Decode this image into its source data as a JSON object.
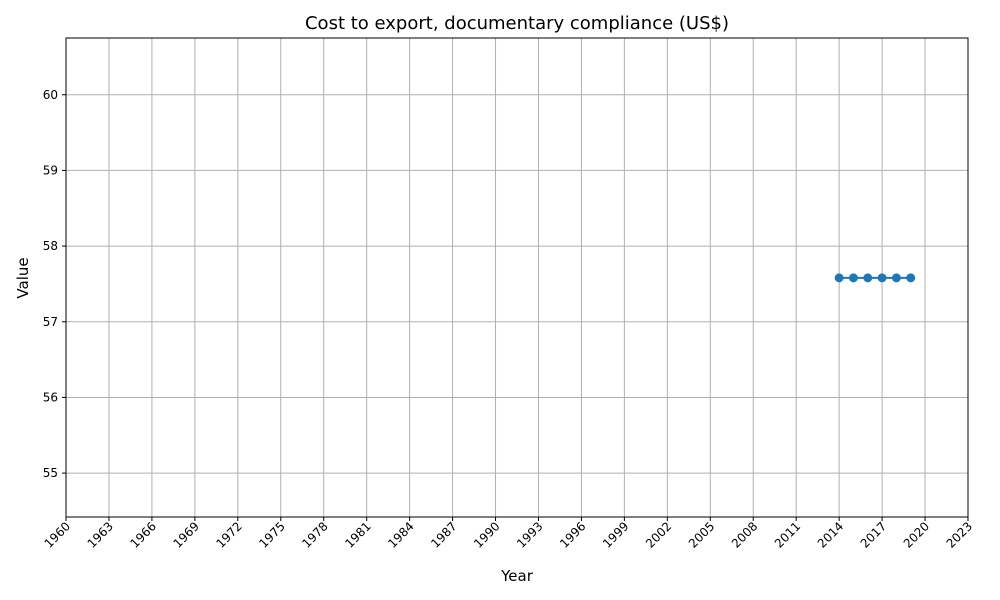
{
  "chart_data": {
    "type": "line",
    "title": "Cost to export, documentary compliance (US$)",
    "xlabel": "Year",
    "ylabel": "Value",
    "xlim": [
      1960,
      2023
    ],
    "ylim": [
      54.42,
      60.75
    ],
    "x_ticks": [
      "1960",
      "1963",
      "1966",
      "1969",
      "1972",
      "1975",
      "1978",
      "1981",
      "1984",
      "1987",
      "1990",
      "1993",
      "1996",
      "1999",
      "2002",
      "2005",
      "2008",
      "2011",
      "2014",
      "2017",
      "2020",
      "2023"
    ],
    "y_ticks": [
      "55",
      "56",
      "57",
      "58",
      "59",
      "60"
    ],
    "grid": true,
    "series": [
      {
        "color": "#1f77b4",
        "x": [
          2014,
          2015,
          2016,
          2017,
          2018,
          2019
        ],
        "y": [
          57.58,
          57.58,
          57.58,
          57.58,
          57.58,
          57.58
        ]
      }
    ]
  }
}
